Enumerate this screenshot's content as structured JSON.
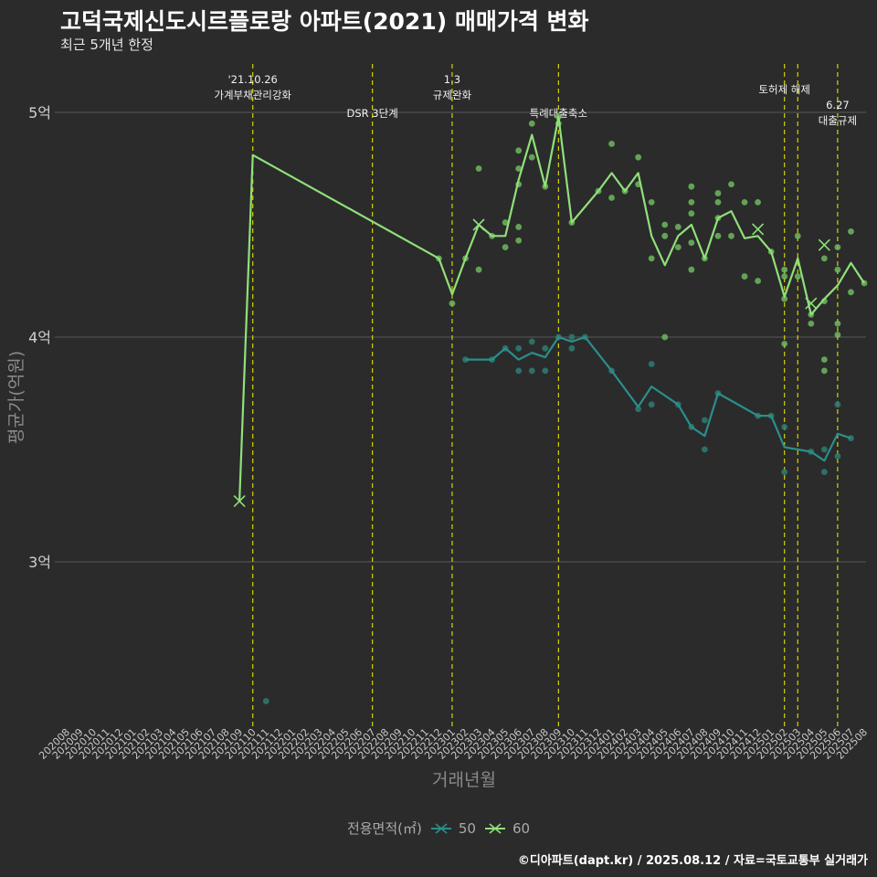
{
  "title": "고덕국제신도시르플로랑 아파트(2021) 매매가격 변화",
  "subtitle": "최근 5개년 한정",
  "caption": "©디아파트(dapt.kr) / 2025.08.12 / 자료=국토교통부 실거래가",
  "colors": {
    "bg": "#2b2b2b",
    "grid": "#5a5a5a",
    "vline": "#d4d400",
    "s50": "#2a8f8c",
    "s60": "#90e07a",
    "pts50": "#2e7d72",
    "pts60": "#6fb85e"
  },
  "chart_data": {
    "type": "line",
    "xlabel": "거래년월",
    "ylabel": "평균가(억원)",
    "categories": [
      "202008",
      "202009",
      "202010",
      "202011",
      "202012",
      "202101",
      "202102",
      "202103",
      "202104",
      "202105",
      "202106",
      "202107",
      "202108",
      "202109",
      "202110",
      "202111",
      "202112",
      "202201",
      "202202",
      "202203",
      "202204",
      "202205",
      "202206",
      "202207",
      "202208",
      "202209",
      "202210",
      "202211",
      "202212",
      "202301",
      "202302",
      "202303",
      "202304",
      "202305",
      "202306",
      "202307",
      "202308",
      "202309",
      "202310",
      "202311",
      "202312",
      "202401",
      "202402",
      "202403",
      "202404",
      "202405",
      "202406",
      "202407",
      "202408",
      "202409",
      "202410",
      "202411",
      "202412",
      "202501",
      "202502",
      "202503",
      "202504",
      "202505",
      "202506",
      "202507",
      "202508"
    ],
    "yticks": [
      {
        "v": 3,
        "label": "3억"
      },
      {
        "v": 4,
        "label": "4억"
      },
      {
        "v": 5,
        "label": "5억"
      }
    ],
    "ylim": [
      2.3,
      5.25
    ],
    "legend": {
      "title": "전용면적(㎡)",
      "items": [
        "50",
        "60"
      ]
    },
    "events": [
      {
        "x": "202110",
        "label": "'21.10.26\n가계부채관리강화"
      },
      {
        "x": "202207",
        "label": "DSR 3단계"
      },
      {
        "x": "202301",
        "label": "1.3\n규제완화"
      },
      {
        "x": "202309",
        "label": "특례대출축소"
      },
      {
        "x": "202502",
        "label": "토허제 해제"
      },
      {
        "x": "202503",
        "label": ""
      },
      {
        "x": "202506",
        "label": "6.27\n대출규제"
      }
    ],
    "series": [
      {
        "name": "50",
        "line": [
          [
            "202302",
            3.9
          ],
          [
            "202304",
            3.9
          ],
          [
            "202305",
            3.95
          ],
          [
            "202306",
            3.9
          ],
          [
            "202307",
            3.93
          ],
          [
            "202308",
            3.91
          ],
          [
            "202309",
            4.0
          ],
          [
            "202310",
            3.98
          ],
          [
            "202311",
            4.0
          ],
          [
            "202401",
            3.85
          ],
          [
            "202403",
            3.69
          ],
          [
            "202404",
            3.78
          ],
          [
            "202406",
            3.7
          ],
          [
            "202407",
            3.6
          ],
          [
            "202408",
            3.56
          ],
          [
            "202409",
            3.75
          ],
          [
            "202412",
            3.65
          ],
          [
            "202501",
            3.65
          ],
          [
            "202502",
            3.51
          ],
          [
            "202504",
            3.49
          ],
          [
            "202505",
            3.45
          ],
          [
            "202506",
            3.57
          ],
          [
            "202507",
            3.55
          ]
        ],
        "points": [
          [
            "202111",
            2.38
          ],
          [
            "202302",
            3.9
          ],
          [
            "202304",
            3.9
          ],
          [
            "202305",
            3.95
          ],
          [
            "202306",
            3.95
          ],
          [
            "202306",
            3.85
          ],
          [
            "202307",
            3.98
          ],
          [
            "202307",
            3.85
          ],
          [
            "202308",
            3.95
          ],
          [
            "202308",
            3.85
          ],
          [
            "202309",
            4.0
          ],
          [
            "202310",
            4.0
          ],
          [
            "202310",
            3.95
          ],
          [
            "202311",
            4.0
          ],
          [
            "202401",
            3.85
          ],
          [
            "202403",
            3.68
          ],
          [
            "202404",
            3.88
          ],
          [
            "202404",
            3.7
          ],
          [
            "202406",
            3.7
          ],
          [
            "202407",
            3.6
          ],
          [
            "202408",
            3.63
          ],
          [
            "202408",
            3.5
          ],
          [
            "202409",
            3.75
          ],
          [
            "202412",
            3.65
          ],
          [
            "202501",
            3.65
          ],
          [
            "202502",
            3.6
          ],
          [
            "202502",
            3.4
          ],
          [
            "202504",
            3.49
          ],
          [
            "202505",
            3.5
          ],
          [
            "202505",
            3.4
          ],
          [
            "202506",
            3.7
          ],
          [
            "202506",
            3.47
          ],
          [
            "202507",
            3.55
          ]
        ],
        "markers": []
      },
      {
        "name": "60",
        "line": [
          [
            "202109",
            3.27
          ],
          [
            "202110",
            4.81
          ],
          [
            "202212",
            4.35
          ],
          [
            "202301",
            4.19
          ],
          [
            "202302",
            4.35
          ],
          [
            "202303",
            4.5
          ],
          [
            "202304",
            4.45
          ],
          [
            "202305",
            4.45
          ],
          [
            "202306",
            4.7
          ],
          [
            "202307",
            4.9
          ],
          [
            "202308",
            4.67
          ],
          [
            "202309",
            4.98
          ],
          [
            "202310",
            4.51
          ],
          [
            "202312",
            4.65
          ],
          [
            "202401",
            4.73
          ],
          [
            "202402",
            4.65
          ],
          [
            "202403",
            4.73
          ],
          [
            "202404",
            4.45
          ],
          [
            "202405",
            4.32
          ],
          [
            "202406",
            4.45
          ],
          [
            "202407",
            4.5
          ],
          [
            "202408",
            4.35
          ],
          [
            "202409",
            4.53
          ],
          [
            "202410",
            4.56
          ],
          [
            "202411",
            4.44
          ],
          [
            "202412",
            4.45
          ],
          [
            "202501",
            4.38
          ],
          [
            "202502",
            4.18
          ],
          [
            "202503",
            4.35
          ],
          [
            "202504",
            4.1
          ],
          [
            "202505",
            4.17
          ],
          [
            "202506",
            4.23
          ],
          [
            "202507",
            4.33
          ],
          [
            "202508",
            4.24
          ]
        ],
        "points": [
          [
            "202212",
            4.35
          ],
          [
            "202301",
            4.15
          ],
          [
            "202302",
            4.35
          ],
          [
            "202303",
            4.75
          ],
          [
            "202303",
            4.3
          ],
          [
            "202304",
            4.45
          ],
          [
            "202305",
            4.51
          ],
          [
            "202305",
            4.4
          ],
          [
            "202306",
            4.83
          ],
          [
            "202306",
            4.75
          ],
          [
            "202306",
            4.68
          ],
          [
            "202306",
            4.49
          ],
          [
            "202306",
            4.43
          ],
          [
            "202307",
            4.95
          ],
          [
            "202307",
            4.8
          ],
          [
            "202308",
            4.67
          ],
          [
            "202309",
            4.98
          ],
          [
            "202309",
            4.95
          ],
          [
            "202310",
            4.51
          ],
          [
            "202312",
            4.65
          ],
          [
            "202401",
            4.86
          ],
          [
            "202401",
            4.62
          ],
          [
            "202402",
            4.65
          ],
          [
            "202403",
            4.8
          ],
          [
            "202403",
            4.68
          ],
          [
            "202404",
            4.6
          ],
          [
            "202404",
            4.35
          ],
          [
            "202405",
            4.5
          ],
          [
            "202405",
            4.45
          ],
          [
            "202405",
            4.0
          ],
          [
            "202406",
            4.49
          ],
          [
            "202406",
            4.4
          ],
          [
            "202407",
            4.67
          ],
          [
            "202407",
            4.6
          ],
          [
            "202407",
            4.55
          ],
          [
            "202407",
            4.42
          ],
          [
            "202407",
            4.3
          ],
          [
            "202408",
            4.35
          ],
          [
            "202409",
            4.64
          ],
          [
            "202409",
            4.6
          ],
          [
            "202409",
            4.53
          ],
          [
            "202409",
            4.45
          ],
          [
            "202410",
            4.68
          ],
          [
            "202410",
            4.45
          ],
          [
            "202411",
            4.6
          ],
          [
            "202411",
            4.27
          ],
          [
            "202412",
            4.6
          ],
          [
            "202412",
            4.25
          ],
          [
            "202501",
            4.38
          ],
          [
            "202502",
            4.3
          ],
          [
            "202502",
            4.27
          ],
          [
            "202502",
            4.17
          ],
          [
            "202502",
            3.97
          ],
          [
            "202503",
            4.45
          ],
          [
            "202503",
            4.27
          ],
          [
            "202504",
            4.1
          ],
          [
            "202504",
            4.06
          ],
          [
            "202505",
            4.35
          ],
          [
            "202505",
            4.16
          ],
          [
            "202505",
            3.9
          ],
          [
            "202505",
            3.85
          ],
          [
            "202506",
            4.4
          ],
          [
            "202506",
            4.3
          ],
          [
            "202506",
            4.06
          ],
          [
            "202506",
            4.01
          ],
          [
            "202507",
            4.47
          ],
          [
            "202507",
            4.2
          ],
          [
            "202508",
            4.24
          ]
        ],
        "markers": [
          [
            "202109",
            3.27
          ],
          [
            "202303",
            4.5
          ],
          [
            "202412",
            4.48
          ],
          [
            "202504",
            4.15
          ],
          [
            "202505",
            4.41
          ]
        ]
      }
    ]
  }
}
